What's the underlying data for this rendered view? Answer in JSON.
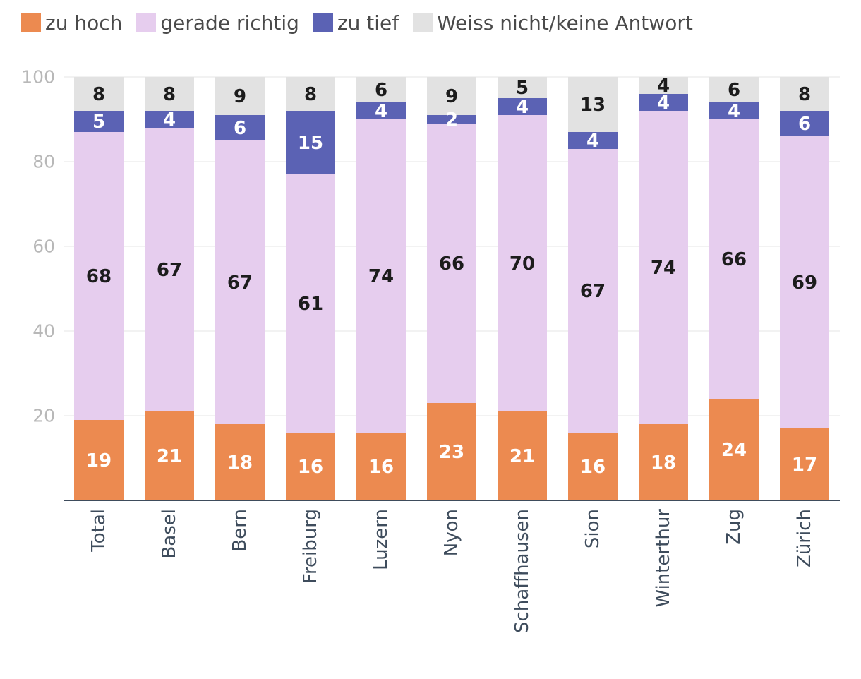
{
  "chart_data": {
    "type": "bar",
    "stacked": true,
    "ylim": [
      0,
      100
    ],
    "yticks": [
      20,
      40,
      60,
      80,
      100
    ],
    "grid": true,
    "legend_position": "top-left",
    "categories": [
      "Total",
      "Basel",
      "Bern",
      "Freiburg",
      "Luzern",
      "Nyon",
      "Schaffhausen",
      "Sion",
      "Winterthur",
      "Zug",
      "Zürich"
    ],
    "series": [
      {
        "name": "zu hoch",
        "color": "#ec8a50",
        "label_color": "light",
        "values": [
          19,
          21,
          18,
          16,
          16,
          23,
          21,
          16,
          18,
          24,
          17
        ]
      },
      {
        "name": "gerade richtig",
        "color": "#e6cdee",
        "label_color": "dark",
        "values": [
          68,
          67,
          67,
          61,
          74,
          66,
          70,
          67,
          74,
          66,
          69
        ]
      },
      {
        "name": "zu tief",
        "color": "#5b62b4",
        "label_color": "light",
        "values": [
          5,
          4,
          6,
          15,
          4,
          2,
          4,
          4,
          4,
          4,
          6
        ]
      },
      {
        "name": "Weiss nicht/keine Antwort",
        "color": "#e2e2e2",
        "label_color": "dark",
        "values": [
          8,
          8,
          9,
          8,
          6,
          9,
          5,
          13,
          4,
          6,
          8
        ]
      }
    ]
  }
}
